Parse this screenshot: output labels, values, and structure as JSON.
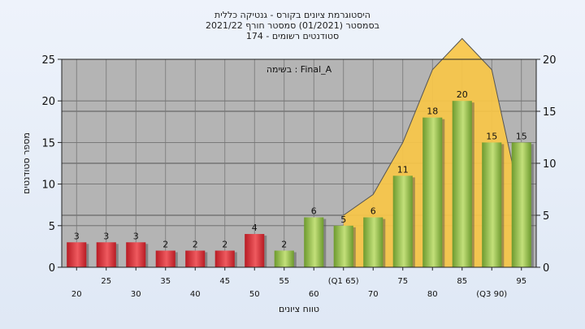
{
  "chart_data": {
    "type": "bar",
    "title_lines": [
      "היסטוגרמת ציונים בקורס - גנטיקה כללית",
      "בסמסטר  (01/2021)  סמסטר חורף  2021/22",
      "סטודנטים רשומים - 174"
    ],
    "annotation": "בשימה : Final_A",
    "xlabel": "טווח ציונים",
    "ylabel": "מספר סטודנטים",
    "x": [
      20,
      25,
      30,
      35,
      40,
      45,
      50,
      55,
      60,
      65,
      70,
      75,
      80,
      85,
      90,
      95
    ],
    "x_tick_labels": [
      "20",
      "25",
      "30",
      "35",
      "40",
      "45",
      "50",
      "55",
      "60",
      "(Q1 65)",
      "70",
      "75",
      "80",
      "85",
      "(Q3 90)",
      "95"
    ],
    "values": [
      3,
      3,
      3,
      2,
      2,
      2,
      4,
      2,
      6,
      5,
      6,
      11,
      18,
      20,
      15,
      15
    ],
    "bar_colors": [
      "#d9363e",
      "#d9363e",
      "#d9363e",
      "#d9363e",
      "#d9363e",
      "#d9363e",
      "#d9363e",
      "#8fbe4a",
      "#8fbe4a",
      "#8fbe4a",
      "#8fbe4a",
      "#8fbe4a",
      "#8fbe4a",
      "#8fbe4a",
      "#8fbe4a",
      "#8fbe4a"
    ],
    "area_values": [
      null,
      null,
      null,
      null,
      null,
      null,
      null,
      null,
      null,
      5,
      7,
      12,
      19,
      22,
      19,
      6
    ],
    "area_color": "#f9c748",
    "ylim_left": [
      0,
      25
    ],
    "yticks_left": [
      0,
      5,
      10,
      15,
      20,
      25
    ],
    "ylim_right": [
      0,
      20
    ],
    "yticks_right": [
      0,
      5,
      10,
      15,
      20
    ],
    "grid": true,
    "plot_background": "#b4b4b4"
  }
}
